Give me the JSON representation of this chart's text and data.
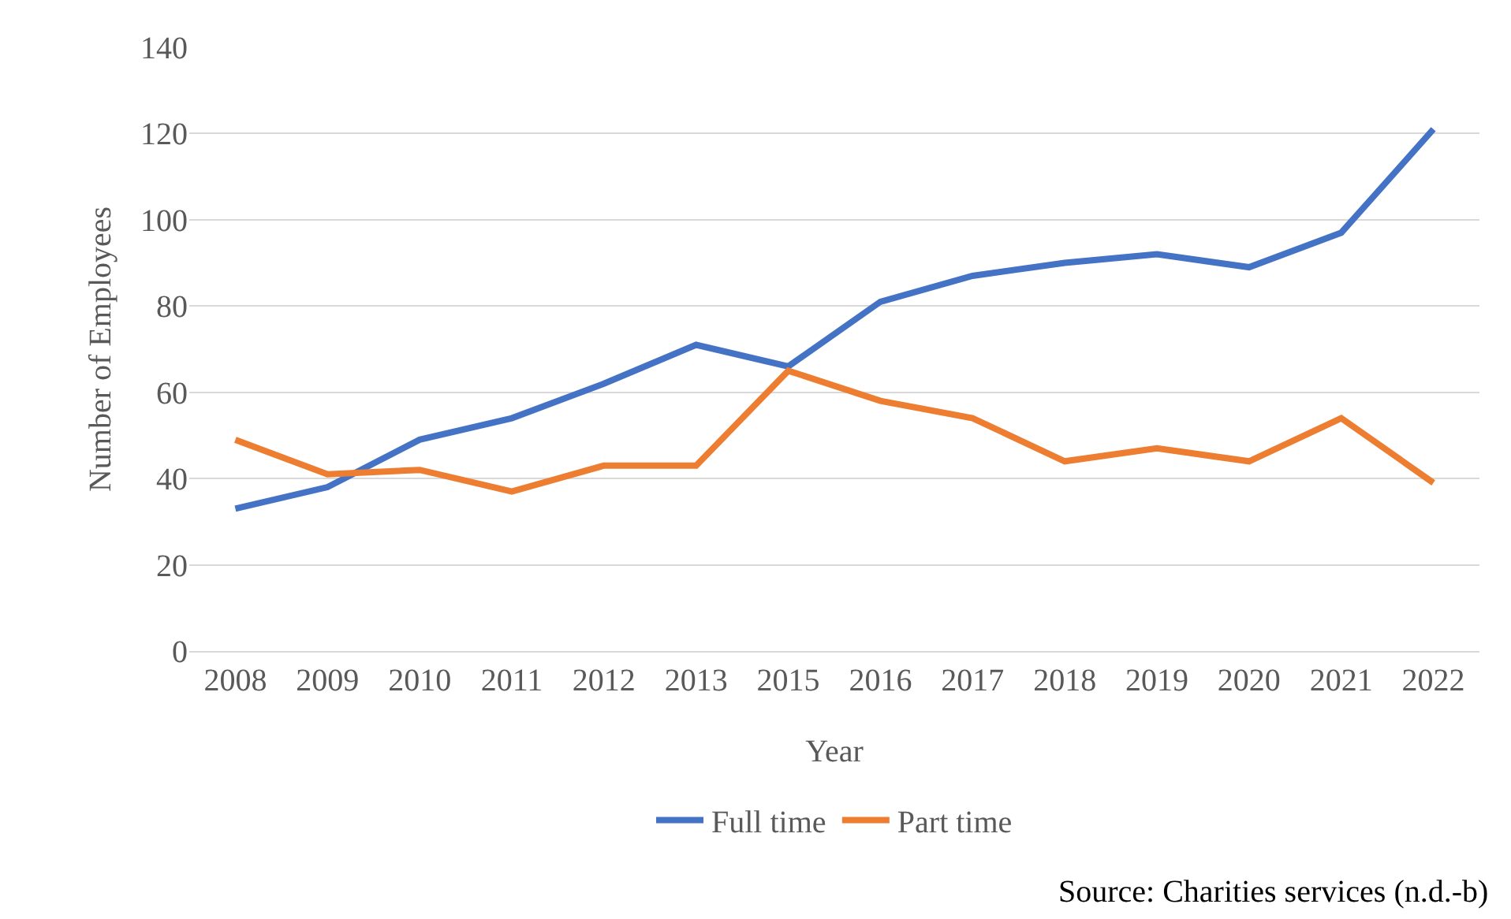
{
  "chart_data": {
    "type": "line",
    "xlabel": "Year",
    "ylabel": "Number of Employees",
    "categories": [
      "2008",
      "2009",
      "2010",
      "2011",
      "2012",
      "2013",
      "2015",
      "2016",
      "2017",
      "2018",
      "2019",
      "2020",
      "2021",
      "2022"
    ],
    "series": [
      {
        "name": "Full time",
        "color": "#4472c4",
        "values": [
          33,
          38,
          49,
          54,
          62,
          71,
          66,
          81,
          87,
          90,
          92,
          89,
          97,
          121
        ]
      },
      {
        "name": "Part time",
        "color": "#ed7d31",
        "values": [
          49,
          41,
          42,
          37,
          43,
          43,
          65,
          58,
          54,
          44,
          47,
          44,
          54,
          39
        ]
      }
    ],
    "ylim": [
      0,
      140
    ],
    "yticks": [
      0,
      20,
      40,
      60,
      80,
      100,
      120,
      140
    ],
    "grid": "y",
    "legend": "bottom",
    "marker": "none",
    "line_style": "solid",
    "annotations": [
      "Source: Charities services (n.d.-b)"
    ]
  }
}
